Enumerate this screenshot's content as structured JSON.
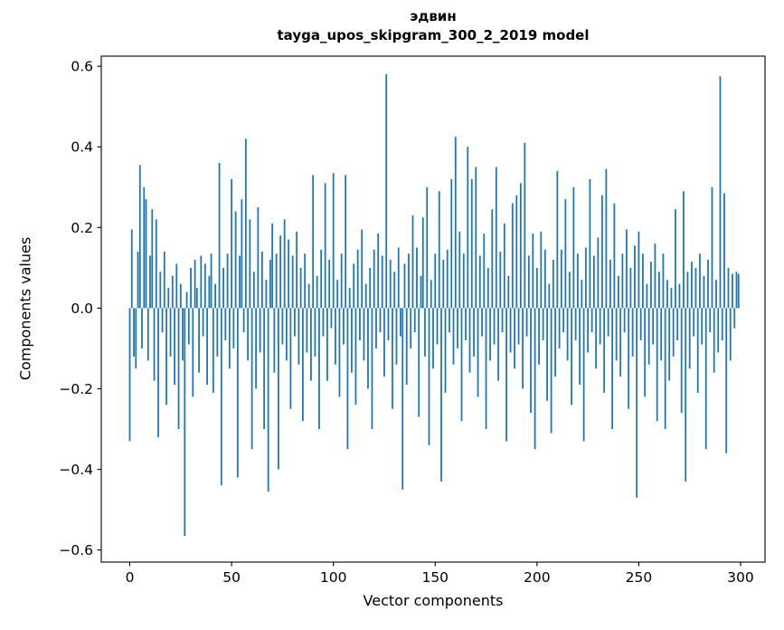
{
  "title": {
    "line1": "эдвин",
    "line2": "tayga_upos_skipgram_300_2_2019 model"
  },
  "chart_data": {
    "type": "bar",
    "title": "эдвин — tayga_upos_skipgram_300_2_2019 model",
    "xlabel": "Vector components",
    "ylabel": "Components values",
    "xlim": [
      -14,
      312
    ],
    "ylim": [
      -0.63,
      0.625
    ],
    "x_ticks": [
      0,
      50,
      100,
      150,
      200,
      250,
      300
    ],
    "x_tick_labels": [
      "0",
      "50",
      "100",
      "150",
      "200",
      "250",
      "300"
    ],
    "y_ticks": [
      -0.6,
      -0.4,
      -0.2,
      0.0,
      0.2,
      0.4,
      0.6
    ],
    "y_tick_labels": [
      "−0.6",
      "−0.4",
      "−0.2",
      "0.0",
      "0.2",
      "0.4",
      "0.6"
    ],
    "bar_color": "#1f77b4",
    "bar_width": 0.8,
    "grid": false,
    "legend": null,
    "values": [
      -0.33,
      0.195,
      -0.12,
      -0.15,
      0.14,
      0.355,
      -0.1,
      0.3,
      0.27,
      -0.13,
      0.13,
      0.245,
      -0.18,
      0.22,
      -0.32,
      0.09,
      -0.06,
      0.14,
      -0.24,
      0.05,
      -0.12,
      0.08,
      -0.19,
      0.11,
      -0.3,
      0.06,
      -0.13,
      -0.565,
      0.04,
      -0.09,
      0.1,
      -0.22,
      0.12,
      0.05,
      -0.16,
      0.13,
      -0.07,
      0.11,
      -0.19,
      0.08,
      0.135,
      -0.21,
      0.06,
      -0.12,
      0.36,
      -0.44,
      0.1,
      -0.08,
      0.135,
      -0.15,
      0.32,
      -0.1,
      0.24,
      -0.42,
      0.13,
      0.27,
      -0.06,
      0.42,
      -0.13,
      0.22,
      -0.35,
      0.09,
      -0.2,
      0.25,
      -0.11,
      0.14,
      -0.3,
      0.07,
      -0.455,
      0.12,
      0.21,
      -0.16,
      0.135,
      -0.4,
      0.18,
      -0.09,
      0.22,
      -0.13,
      0.17,
      -0.25,
      0.13,
      -0.07,
      0.19,
      -0.14,
      0.1,
      -0.28,
      0.135,
      -0.11,
      0.06,
      -0.18,
      0.33,
      -0.12,
      0.08,
      -0.3,
      0.145,
      -0.07,
      0.31,
      -0.18,
      0.12,
      -0.05,
      0.335,
      -0.14,
      0.07,
      -0.22,
      0.135,
      -0.09,
      0.33,
      -0.35,
      0.05,
      -0.16,
      0.11,
      -0.24,
      0.145,
      -0.08,
      0.195,
      -0.13,
      0.06,
      -0.2,
      0.1,
      -0.3,
      0.145,
      -0.1,
      0.185,
      -0.06,
      0.13,
      -0.17,
      0.58,
      -0.08,
      0.12,
      -0.25,
      0.09,
      -0.14,
      0.15,
      -0.07,
      -0.45,
      0.11,
      -0.19,
      0.135,
      -0.1,
      0.23,
      -0.06,
      0.15,
      -0.27,
      0.08,
      0.225,
      -0.12,
      0.3,
      -0.34,
      0.07,
      -0.15,
      0.135,
      -0.09,
      0.29,
      -0.43,
      0.12,
      -0.21,
      0.145,
      -0.06,
      0.32,
      -0.14,
      0.425,
      -0.1,
      0.19,
      -0.28,
      0.135,
      -0.08,
      0.4,
      -0.16,
      0.32,
      -0.12,
      0.35,
      -0.22,
      0.13,
      -0.07,
      0.185,
      -0.3,
      0.1,
      -0.13,
      0.245,
      -0.09,
      0.35,
      -0.18,
      0.14,
      -0.06,
      0.21,
      -0.33,
      0.08,
      -0.11,
      0.26,
      -0.15,
      0.28,
      -0.09,
      0.31,
      -0.2,
      0.41,
      -0.07,
      0.13,
      -0.26,
      0.185,
      -0.35,
      0.1,
      -0.14,
      0.19,
      -0.08,
      0.145,
      -0.23,
      0.06,
      -0.31,
      0.12,
      -0.17,
      0.34,
      -0.1,
      0.145,
      -0.06,
      0.27,
      -0.13,
      0.09,
      -0.24,
      0.3,
      -0.08,
      0.135,
      -0.19,
      0.07,
      -0.33,
      0.15,
      -0.11,
      0.32,
      -0.06,
      0.13,
      -0.15,
      0.175,
      -0.09,
      0.28,
      -0.21,
      0.345,
      -0.07,
      0.12,
      -0.3,
      0.26,
      -0.13,
      0.08,
      -0.17,
      0.135,
      -0.06,
      0.195,
      -0.25,
      0.1,
      -0.12,
      0.155,
      -0.47,
      0.19,
      -0.08,
      0.135,
      -0.22,
      0.06,
      -0.14,
      0.115,
      -0.09,
      0.16,
      -0.28,
      0.09,
      -0.13,
      0.135,
      -0.3,
      0.07,
      -0.18,
      0.05,
      -0.12,
      0.245,
      -0.08,
      0.06,
      -0.26,
      0.29,
      -0.43,
      0.09,
      -0.15,
      0.115,
      -0.07,
      0.1,
      -0.21,
      0.135,
      -0.09,
      0.08,
      -0.35,
      0.12,
      -0.06,
      0.3,
      -0.16,
      0.07,
      -0.11,
      0.575,
      -0.08,
      0.285,
      -0.36,
      0.1,
      -0.13,
      0.085,
      -0.05,
      0.09,
      0.085
    ]
  }
}
